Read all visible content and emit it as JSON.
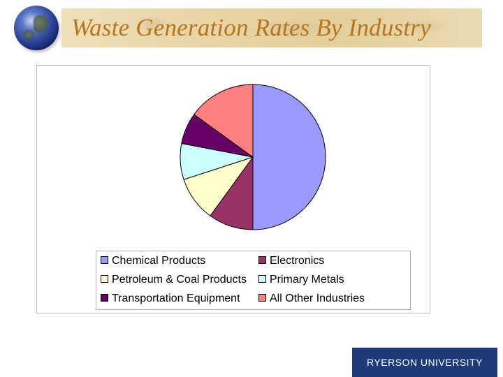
{
  "slide": {
    "title": "Waste Generation Rates By Industry"
  },
  "icons": {
    "globe": "globe-icon"
  },
  "footer": {
    "logo_text": "RYERSON UNIVERSITY",
    "logo_color": "#1f3a7a"
  },
  "chart_data": {
    "type": "pie",
    "title": "",
    "start_angle_deg": 90,
    "direction": "clockwise",
    "legend_position": "bottom",
    "slices": [
      {
        "label": "Chemical Products",
        "value": 50,
        "color": "#9999ff"
      },
      {
        "label": "Electronics",
        "value": 10,
        "color": "#993366"
      },
      {
        "label": "Petroleum & Coal Products",
        "value": 10,
        "color": "#ffffcc"
      },
      {
        "label": "Primary Metals",
        "value": 8,
        "color": "#ccffff"
      },
      {
        "label": "Transportation Equipment",
        "value": 7,
        "color": "#660066"
      },
      {
        "label": "All Other Industries",
        "value": 15,
        "color": "#ff8080"
      }
    ]
  }
}
